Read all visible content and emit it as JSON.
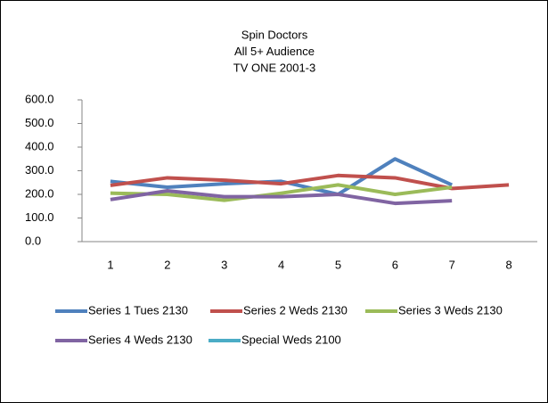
{
  "chart_data": {
    "type": "line",
    "title": [
      "Spin Doctors",
      "All 5+ Audience",
      "TV ONE 2001-3"
    ],
    "categories": [
      "1",
      "2",
      "3",
      "4",
      "5",
      "6",
      "7",
      "8"
    ],
    "series": [
      {
        "name": "Series 1 Tues 2130",
        "color": "#4f81bd",
        "values": [
          255,
          230,
          245,
          255,
          200,
          350,
          240,
          null
        ]
      },
      {
        "name": "Series 2 Weds 2130",
        "color": "#c0504d",
        "values": [
          238,
          270,
          260,
          245,
          280,
          270,
          225,
          240
        ]
      },
      {
        "name": "Series 3 Weds 2130",
        "color": "#9bbb59",
        "values": [
          205,
          200,
          175,
          205,
          240,
          200,
          230,
          null
        ]
      },
      {
        "name": "Series 4 Weds 2130",
        "color": "#8064a2",
        "values": [
          178,
          215,
          190,
          190,
          200,
          162,
          173,
          null
        ]
      },
      {
        "name": "Special Weds 2100",
        "color": "#4bacc6",
        "values": [
          null,
          null,
          null,
          null,
          null,
          null,
          null,
          null
        ]
      }
    ],
    "ylim": [
      0,
      600
    ],
    "yticks": [
      {
        "value": 0,
        "label": "0.0"
      },
      {
        "value": 100,
        "label": "100.0"
      },
      {
        "value": 200,
        "label": "200.0"
      },
      {
        "value": 300,
        "label": "300.0"
      },
      {
        "value": 400,
        "label": "400.0"
      },
      {
        "value": 500,
        "label": "500.0"
      },
      {
        "value": 600,
        "label": "600.0"
      }
    ],
    "grid": false
  }
}
